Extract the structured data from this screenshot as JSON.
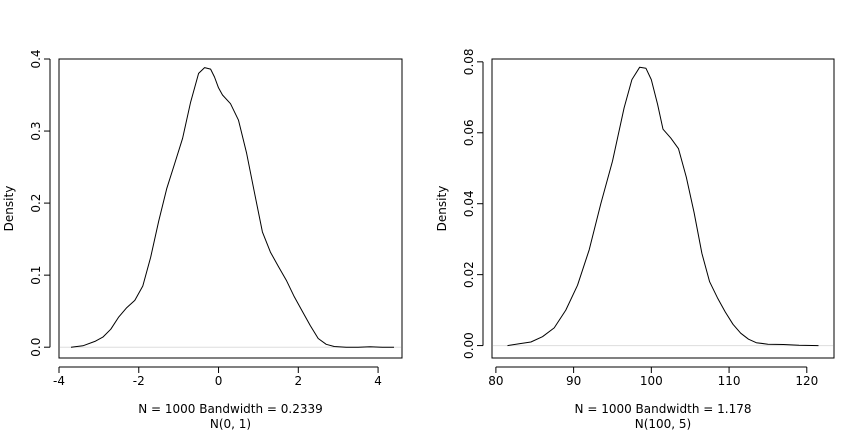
{
  "chart_data": [
    {
      "type": "line",
      "title": "",
      "xlabel": "N = 1000   Bandwidth = 0.2339",
      "sublabel": "N(0, 1)",
      "ylabel": "Density",
      "xlim": [
        -4.0,
        4.6
      ],
      "ylim": [
        -0.015,
        0.4
      ],
      "x_ticks": [
        -4,
        -2,
        0,
        2,
        4
      ],
      "x_tick_labels": [
        "-4",
        "-2",
        "0",
        "2",
        "4"
      ],
      "y_ticks": [
        0.0,
        0.1,
        0.2,
        0.3,
        0.4
      ],
      "y_tick_labels": [
        "0.0",
        "0.1",
        "0.2",
        "0.3",
        "0.4"
      ],
      "grid": false,
      "baseline": 0,
      "line_color": "#000000",
      "baseline_color": "#dddddd",
      "series": [
        {
          "x": [
            -3.7,
            -3.4,
            -3.1,
            -2.9,
            -2.7,
            -2.5,
            -2.3,
            -2.1,
            -1.9,
            -1.7,
            -1.5,
            -1.3,
            -1.1,
            -0.9,
            -0.7,
            -0.5,
            -0.35,
            -0.2,
            -0.1,
            0.0,
            0.1,
            0.3,
            0.5,
            0.7,
            0.9,
            1.1,
            1.3,
            1.5,
            1.7,
            1.9,
            2.1,
            2.3,
            2.5,
            2.7,
            2.9,
            3.2,
            3.5,
            3.8,
            4.1,
            4.4
          ],
          "y": [
            0.0,
            0.002,
            0.008,
            0.014,
            0.025,
            0.042,
            0.055,
            0.065,
            0.085,
            0.125,
            0.175,
            0.22,
            0.255,
            0.29,
            0.34,
            0.38,
            0.388,
            0.386,
            0.375,
            0.36,
            0.35,
            0.338,
            0.315,
            0.27,
            0.215,
            0.16,
            0.132,
            0.112,
            0.093,
            0.07,
            0.05,
            0.03,
            0.012,
            0.004,
            0.001,
            0.0,
            0.0,
            0.0005,
            0.0,
            0.0
          ]
        }
      ]
    },
    {
      "type": "line",
      "title": "",
      "xlabel": "N = 1000   Bandwidth = 1.178",
      "sublabel": "N(100, 5)",
      "ylabel": "Density",
      "xlim": [
        79.5,
        123.5
      ],
      "ylim": [
        -0.0035,
        0.0808
      ],
      "x_ticks": [
        80,
        90,
        100,
        110,
        120
      ],
      "x_tick_labels": [
        "80",
        "90",
        "100",
        "110",
        "120"
      ],
      "y_ticks": [
        0.0,
        0.02,
        0.04,
        0.06,
        0.08
      ],
      "y_tick_labels": [
        "0.00",
        "0.02",
        "0.04",
        "0.06",
        "0.08"
      ],
      "grid": false,
      "baseline": 0,
      "line_color": "#000000",
      "baseline_color": "#dddddd",
      "series": [
        {
          "x": [
            81.5,
            83,
            84.5,
            86,
            87.5,
            89,
            90.5,
            92,
            93.5,
            95,
            96.5,
            97.5,
            98.5,
            99.3,
            100,
            100.8,
            101.5,
            102.5,
            103.5,
            104.5,
            105.5,
            106.5,
            107.5,
            108.5,
            109.5,
            110.5,
            111.5,
            112.5,
            113.5,
            115,
            117,
            119,
            121.5
          ],
          "y": [
            0.0,
            0.0005,
            0.001,
            0.0025,
            0.005,
            0.01,
            0.017,
            0.027,
            0.04,
            0.052,
            0.067,
            0.075,
            0.0785,
            0.0782,
            0.075,
            0.068,
            0.061,
            0.0585,
            0.0555,
            0.0475,
            0.0375,
            0.026,
            0.018,
            0.0135,
            0.0095,
            0.006,
            0.0035,
            0.0018,
            0.0008,
            0.0004,
            0.0003,
            0.0001,
            0.0
          ]
        }
      ]
    }
  ]
}
